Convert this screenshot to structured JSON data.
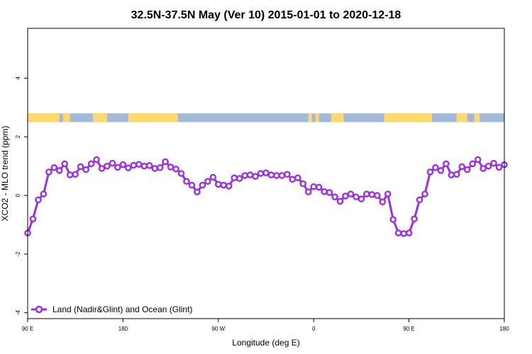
{
  "chart_data": {
    "type": "line",
    "title": "32.5N-37.5N May (Ver 10)   2015-01-01 to 2020-12-18",
    "xlabel": "Longitude (deg E)",
    "ylabel": "XCO2 - MLO trend (ppm)",
    "xlim": [
      -90,
      180
    ],
    "ylim": [
      -4.2,
      5.7
    ],
    "x_ticks": [
      {
        "value": -90,
        "label": "90 E"
      },
      {
        "value": -36,
        "label": "180"
      },
      {
        "value": 18,
        "label": "90 W"
      },
      {
        "value": 72,
        "label": "0"
      },
      {
        "value": 126,
        "label": "90 E"
      },
      {
        "value": 180,
        "label": "180"
      }
    ],
    "y_ticks": [
      -4,
      -2,
      0,
      2,
      4
    ],
    "grid": false,
    "legend_position": "bottom-left",
    "land_ocean_strip": {
      "y_range": [
        2.5,
        2.8
      ],
      "land_color": "#FFD970",
      "ocean_color": "#A3B9DA",
      "land_segments": [
        [
          -90,
          -72
        ],
        [
          -70,
          -66
        ],
        [
          -53,
          -45
        ],
        [
          -33,
          -5
        ],
        [
          69,
          71
        ],
        [
          73,
          75
        ],
        [
          82,
          89
        ],
        [
          112,
          139
        ],
        [
          153,
          159
        ],
        [
          163,
          166
        ]
      ]
    },
    "series": [
      {
        "name": "Land (Nadir&Glint) and Ocean (Glint)",
        "color": "#9B30E0",
        "x": [
          -90,
          -87,
          -84,
          -81,
          -78,
          -75,
          -72,
          -69,
          -66,
          -63,
          -60,
          -57,
          -54,
          -51,
          -48,
          -45,
          -42,
          -39,
          -36,
          -33,
          -30,
          -27,
          -24,
          -21,
          -18,
          -15,
          -12,
          -9,
          -6,
          -3,
          0,
          3,
          6,
          9,
          12,
          15,
          18,
          21,
          24,
          27,
          30,
          33,
          36,
          39,
          42,
          45,
          48,
          51,
          54,
          57,
          60,
          63,
          66,
          69,
          72,
          75,
          78,
          81,
          84,
          87,
          90,
          93,
          96,
          99,
          102,
          105,
          108,
          111,
          114,
          117,
          120,
          123,
          126,
          129,
          132,
          135,
          138,
          141,
          144,
          147,
          150,
          153,
          156,
          159,
          162,
          165,
          168,
          171,
          174,
          177,
          180
        ],
        "y": [
          -1.28,
          -0.8,
          -0.15,
          0.05,
          0.8,
          0.95,
          0.85,
          1.08,
          0.7,
          0.72,
          0.98,
          0.88,
          1.08,
          1.22,
          0.92,
          1.0,
          1.1,
          0.96,
          1.05,
          0.94,
          1.03,
          1.06,
          1.0,
          1.02,
          0.92,
          0.95,
          1.15,
          0.97,
          0.9,
          0.75,
          0.48,
          0.35,
          0.12,
          0.35,
          0.48,
          0.62,
          0.38,
          0.35,
          0.32,
          0.6,
          0.58,
          0.68,
          0.7,
          0.65,
          0.75,
          0.77,
          0.7,
          0.68,
          0.68,
          0.72,
          0.55,
          0.6,
          0.4,
          0.12,
          0.3,
          0.28,
          0.13,
          0.1,
          -0.05,
          -0.2,
          -0.02,
          0.05,
          -0.05,
          -0.12,
          0.05,
          0.03,
          0.0,
          -0.22,
          0.05,
          -0.82,
          -1.28,
          -1.3,
          -1.28,
          -0.8,
          -0.15,
          0.05,
          0.8,
          0.95,
          0.85,
          1.08,
          0.7,
          0.72,
          0.98,
          0.88,
          1.08,
          1.22,
          0.92,
          1.0,
          1.1,
          0.96,
          1.05
        ]
      }
    ]
  }
}
